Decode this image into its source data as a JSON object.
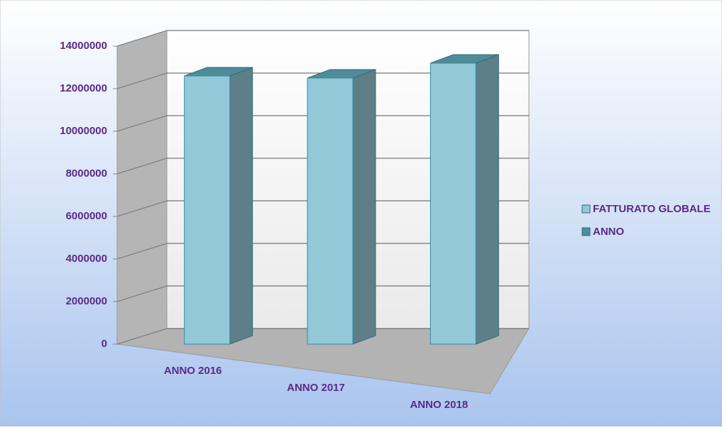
{
  "chart_data": {
    "type": "bar3d",
    "categories": [
      "ANNO 2016",
      "ANNO 2017",
      "ANNO 2018"
    ],
    "series": [
      {
        "name": "FATTURATO GLOBALE",
        "color": "#93c8d8",
        "values": [
          12600000,
          12500000,
          13200000
        ]
      },
      {
        "name": "ANNO",
        "color": "#4d8c9a",
        "values": [
          null,
          null,
          null
        ]
      }
    ],
    "ylim": [
      0,
      14000000
    ],
    "yticks": [
      0,
      2000000,
      4000000,
      6000000,
      8000000,
      10000000,
      12000000,
      14000000
    ],
    "grid": true,
    "legend": "right"
  }
}
